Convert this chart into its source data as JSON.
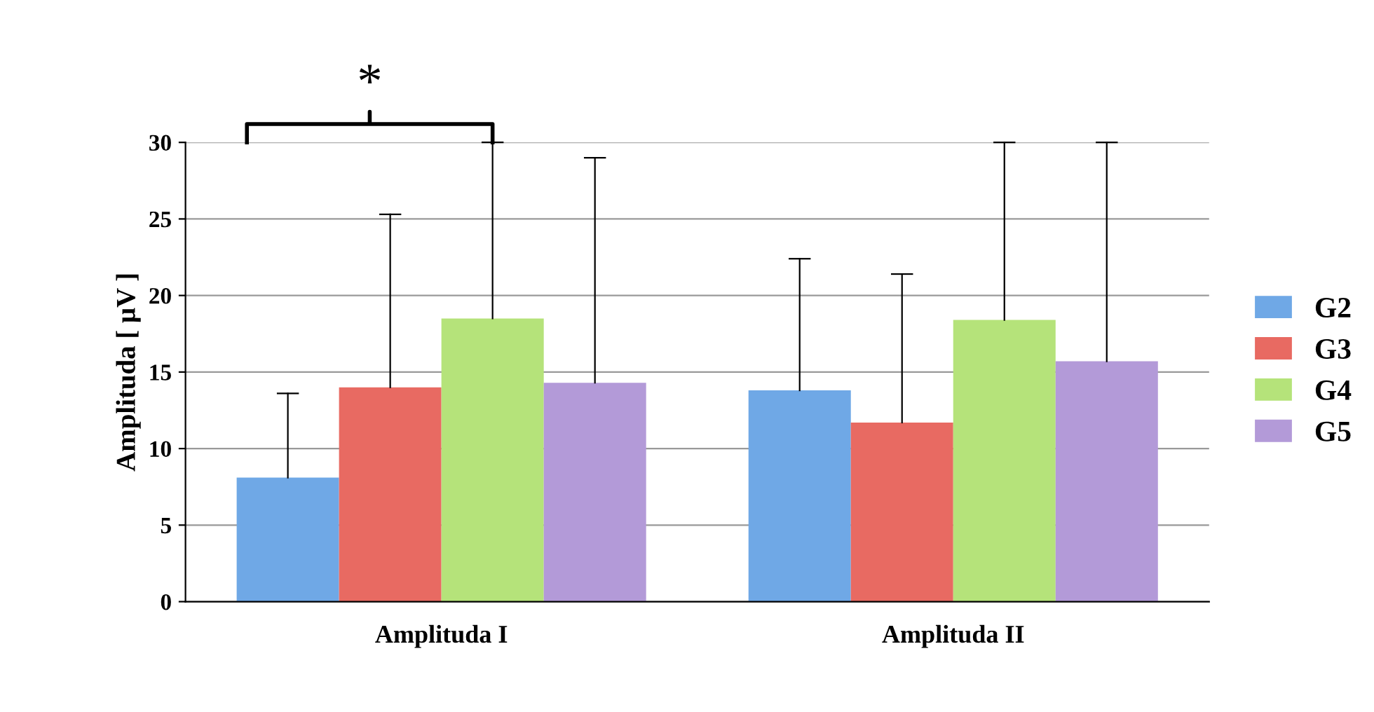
{
  "chart_data": {
    "type": "bar",
    "ylabel": "Amplituda [ μV ]",
    "categories": [
      "Amplituda I",
      "Amplituda II"
    ],
    "series": [
      {
        "name": "G2",
        "color": "#6fa8e6",
        "values": [
          8.1,
          13.8
        ],
        "errors": [
          [
            8.1,
            13.6
          ],
          [
            13.8,
            22.4
          ]
        ]
      },
      {
        "name": "G3",
        "color": "#e86a62",
        "values": [
          14.0,
          11.7
        ],
        "errors": [
          [
            14.0,
            25.3
          ],
          [
            11.7,
            21.4
          ]
        ]
      },
      {
        "name": "G4",
        "color": "#b5e37a",
        "values": [
          18.5,
          18.4
        ],
        "errors": [
          [
            18.5,
            30
          ],
          [
            18.4,
            30
          ]
        ]
      },
      {
        "name": "G5",
        "color": "#b39ad8",
        "values": [
          14.3,
          15.7
        ],
        "errors": [
          [
            14.3,
            29.0
          ],
          [
            15.7,
            30
          ]
        ]
      }
    ],
    "ylim": [
      0,
      30
    ],
    "yticks": [
      0,
      5,
      10,
      15,
      20,
      25,
      30
    ],
    "grid": "y",
    "legend": "right",
    "annotations": [
      "*"
    ]
  }
}
